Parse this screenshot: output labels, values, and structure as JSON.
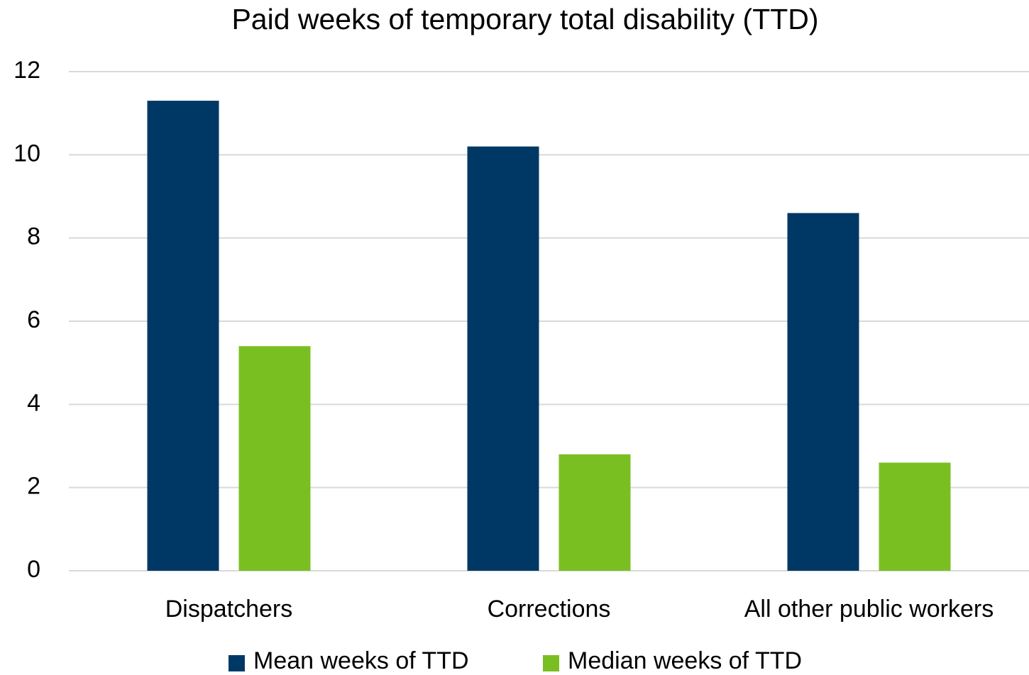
{
  "chart_data": {
    "type": "bar",
    "title": "Paid weeks of temporary total disability (TTD)",
    "categories": [
      "Dispatchers",
      "Corrections",
      "All other public workers"
    ],
    "series": [
      {
        "name": "Mean weeks of TTD",
        "color": "#003865",
        "values": [
          11.3,
          10.2,
          8.6
        ]
      },
      {
        "name": "Median weeks of TTD",
        "color": "#7abf22",
        "values": [
          5.4,
          2.8,
          2.6
        ]
      }
    ],
    "ylim": [
      0,
      12
    ],
    "yticks": [
      0,
      2,
      4,
      6,
      8,
      10,
      12
    ],
    "grid": true,
    "legend": "bottom"
  }
}
